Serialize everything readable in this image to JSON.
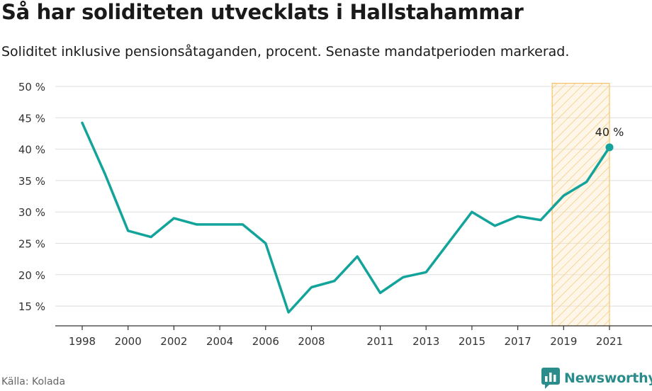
{
  "header": {
    "title": "Så har soliditeten utvecklats i Hallstahammar",
    "subtitle": "Soliditet inklusive pensionsåtaganden, procent. Senaste mandatperioden markerad."
  },
  "footer": {
    "source": "Källa: Kolada",
    "brand": "Newsworthy"
  },
  "colors": {
    "line": "#12a39a",
    "highlight_stroke": "#f6c36a",
    "highlight_fill": "#fde9bf",
    "grid": "#dddddd",
    "brand": "#2b8c8c"
  },
  "chart_data": {
    "type": "line",
    "x": [
      1998,
      1999,
      2000,
      2001,
      2002,
      2003,
      2004,
      2005,
      2006,
      2007,
      2008,
      2009,
      2010,
      2011,
      2012,
      2013,
      2014,
      2015,
      2016,
      2017,
      2018,
      2019,
      2020,
      2021
    ],
    "series": [
      {
        "values": [
          44.2,
          36.0,
          27.0,
          26.0,
          29.0,
          28.0,
          28.0,
          28.0,
          25.0,
          14.0,
          18.0,
          19.0,
          22.9,
          17.1,
          19.6,
          20.4,
          25.2,
          30.0,
          27.8,
          29.3,
          28.7,
          32.6,
          34.8,
          40.3
        ]
      }
    ],
    "x_ticks": [
      1998,
      2000,
      2002,
      2004,
      2006,
      2008,
      2011,
      2013,
      2015,
      2017,
      2019,
      2021
    ],
    "y_ticks": [
      15,
      20,
      25,
      30,
      35,
      40,
      45,
      50
    ],
    "y_tick_labels": [
      "15 %",
      "20 %",
      "25 %",
      "30 %",
      "35 %",
      "40 %",
      "45 %",
      "50 %"
    ],
    "xlim": [
      1998,
      2021
    ],
    "ylim": [
      12,
      50.5
    ],
    "highlight_range": [
      2018.5,
      2021
    ],
    "last_value_label": "40 %",
    "xlabel": "",
    "ylabel": "",
    "grid": true
  }
}
